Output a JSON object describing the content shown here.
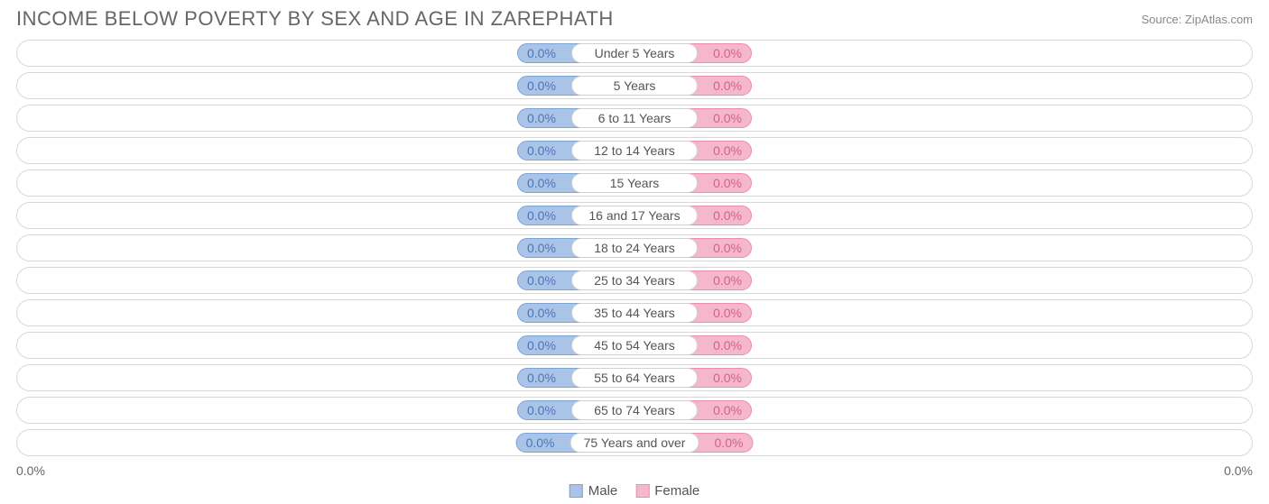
{
  "title": "INCOME BELOW POVERTY BY SEX AND AGE IN ZAREPHATH",
  "source": "Source: ZipAtlas.com",
  "colors": {
    "male_fill": "#aac4e8",
    "male_border": "#7ba3d6",
    "male_text": "#4a76b8",
    "female_fill": "#f5b7cb",
    "female_border": "#ec8fae",
    "female_text": "#d6608a",
    "row_border": "#d8d8d8",
    "label_border": "#d0d0d0",
    "text": "#555555",
    "title_color": "#666666"
  },
  "legend": {
    "male": "Male",
    "female": "Female"
  },
  "axis": {
    "left": "0.0%",
    "right": "0.0%"
  },
  "rows": [
    {
      "age": "Under 5 Years",
      "male": "0.0%",
      "female": "0.0%"
    },
    {
      "age": "5 Years",
      "male": "0.0%",
      "female": "0.0%"
    },
    {
      "age": "6 to 11 Years",
      "male": "0.0%",
      "female": "0.0%"
    },
    {
      "age": "12 to 14 Years",
      "male": "0.0%",
      "female": "0.0%"
    },
    {
      "age": "15 Years",
      "male": "0.0%",
      "female": "0.0%"
    },
    {
      "age": "16 and 17 Years",
      "male": "0.0%",
      "female": "0.0%"
    },
    {
      "age": "18 to 24 Years",
      "male": "0.0%",
      "female": "0.0%"
    },
    {
      "age": "25 to 34 Years",
      "male": "0.0%",
      "female": "0.0%"
    },
    {
      "age": "35 to 44 Years",
      "male": "0.0%",
      "female": "0.0%"
    },
    {
      "age": "45 to 54 Years",
      "male": "0.0%",
      "female": "0.0%"
    },
    {
      "age": "55 to 64 Years",
      "male": "0.0%",
      "female": "0.0%"
    },
    {
      "age": "65 to 74 Years",
      "male": "0.0%",
      "female": "0.0%"
    },
    {
      "age": "75 Years and over",
      "male": "0.0%",
      "female": "0.0%"
    }
  ]
}
